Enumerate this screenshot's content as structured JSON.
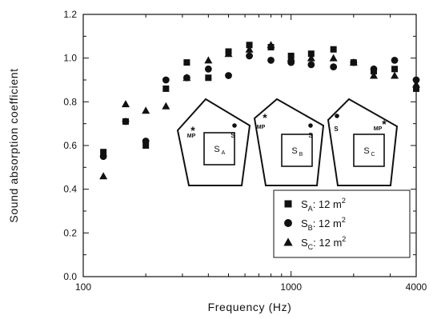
{
  "chart_data": {
    "type": "scatter",
    "xlabel": "Frequency (Hz)",
    "ylabel": "Sound absorption coefficient",
    "xscale": "log",
    "xlim": [
      100,
      4000
    ],
    "ylim": [
      0.0,
      1.2
    ],
    "x_ticks": [
      100,
      1000,
      4000
    ],
    "x_tick_labels": [
      "100",
      "1000",
      "4000"
    ],
    "y_ticks": [
      0.0,
      0.2,
      0.4,
      0.6,
      0.8,
      1.0,
      1.2
    ],
    "y_tick_labels": [
      "0.0",
      "0.2",
      "0.4",
      "0.6",
      "0.8",
      "1.0",
      "1.2"
    ],
    "legend_position": "bottom-right",
    "series": [
      {
        "label_main": "S",
        "label_sub": "A",
        "label_value": ": 12 m",
        "label_sup": "2",
        "marker": "square",
        "x": [
          125,
          160,
          200,
          250,
          315,
          400,
          500,
          630,
          800,
          1000,
          1250,
          1600,
          2000,
          2500,
          3150,
          4000
        ],
        "y": [
          0.57,
          0.71,
          0.6,
          0.86,
          0.98,
          0.91,
          1.03,
          1.06,
          1.05,
          1.01,
          1.02,
          1.04,
          0.98,
          0.94,
          0.95,
          0.86
        ]
      },
      {
        "label_main": "S",
        "label_sub": "B",
        "label_value": ": 12 m",
        "label_sup": "2",
        "marker": "circle",
        "x": [
          125,
          160,
          200,
          250,
          315,
          400,
          500,
          630,
          800,
          1000,
          1250,
          1600,
          2000,
          2500,
          3150,
          4000
        ],
        "y": [
          0.55,
          0.71,
          0.62,
          0.9,
          0.91,
          0.95,
          0.92,
          1.01,
          0.99,
          0.98,
          0.97,
          0.96,
          0.98,
          0.95,
          0.99,
          0.9
        ]
      },
      {
        "label_main": "S",
        "label_sub": "C",
        "label_value": ": 12 m",
        "label_sup": "2",
        "marker": "triangle",
        "x": [
          125,
          160,
          200,
          250,
          315,
          400,
          500,
          630,
          800,
          1000,
          1250,
          1600,
          2000,
          2500,
          3150,
          4000
        ],
        "y": [
          0.46,
          0.79,
          0.76,
          0.78,
          0.91,
          0.99,
          1.02,
          1.04,
          1.06,
          1.0,
          1.0,
          1.0,
          0.98,
          0.92,
          0.92,
          0.88
        ]
      }
    ],
    "insets": [
      {
        "mp_label": "MP",
        "s_label": "S",
        "box_main": "S",
        "box_sub": "A"
      },
      {
        "mp_label": "MP",
        "s_label": "S",
        "box_main": "S",
        "box_sub": "B"
      },
      {
        "mp_label": "MP",
        "s_label": "S",
        "box_main": "S",
        "box_sub": "C"
      }
    ]
  }
}
